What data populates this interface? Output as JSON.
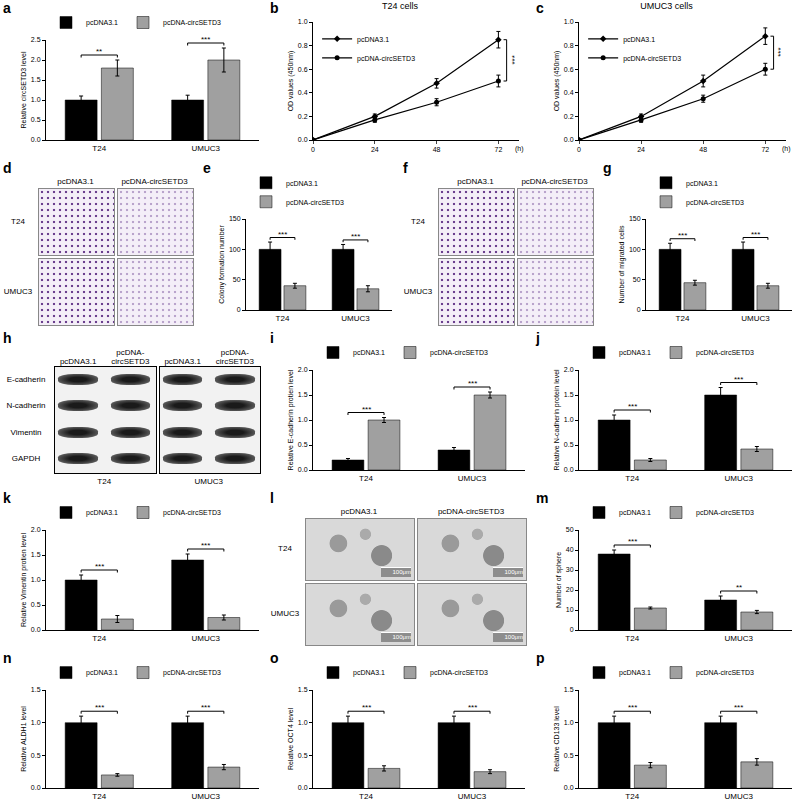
{
  "chart_data": [
    {
      "panel": "a",
      "type": "bar",
      "y_label": "Relative circSETD3 level",
      "categories": [
        "T24",
        "UMUC3"
      ],
      "series": [
        {
          "name": "pcDNA3.1",
          "color": "#000000",
          "values": [
            1.0,
            1.0
          ],
          "errors": [
            0.1,
            0.12
          ]
        },
        {
          "name": "pcDNA-circSETD3",
          "color": "#a0a0a0",
          "values": [
            1.8,
            2.0
          ],
          "errors": [
            0.2,
            0.3
          ]
        }
      ],
      "ylim": [
        0,
        2.5
      ],
      "yticks": [
        {
          "value": 0,
          "label": "0.0"
        },
        0.5,
        {
          "value": 1,
          "label": "1.0"
        },
        1.5,
        {
          "value": 2,
          "label": "2.0"
        },
        2.5
      ],
      "legend": "top",
      "grid": false,
      "annotations": [
        {
          "category": "T24",
          "text": "**"
        },
        {
          "category": "UMUC3",
          "text": "***"
        }
      ]
    },
    {
      "panel": "b",
      "type": "line",
      "title": "T24 cells",
      "y_label": "OD values (450nm)",
      "x_label": "(h)",
      "x": [
        0,
        24,
        48,
        72
      ],
      "series": [
        {
          "name": "pcDNA3.1",
          "color": "#000000",
          "marker": "diamond",
          "values": [
            0.0,
            0.2,
            0.48,
            0.85
          ],
          "errors": [
            0.0,
            0.02,
            0.04,
            0.07
          ]
        },
        {
          "name": "pcDNA-circSETD3",
          "color": "#000000",
          "marker": "circle",
          "values": [
            0.0,
            0.17,
            0.32,
            0.5
          ],
          "errors": [
            0.0,
            0.02,
            0.03,
            0.05
          ]
        }
      ],
      "xlim": [
        0,
        80
      ],
      "xticks": [
        0,
        24,
        48,
        72
      ],
      "ylim": [
        0,
        1.0
      ],
      "yticks": [
        {
          "value": 0,
          "label": "0.0"
        },
        0.2,
        0.4,
        0.6,
        0.8,
        {
          "value": 1.0,
          "label": "1.0"
        }
      ],
      "legend": "upper left",
      "grid": false,
      "annotations": [
        {
          "x": 72,
          "text": "***"
        }
      ]
    },
    {
      "panel": "c",
      "type": "line",
      "title": "UMUC3 cells",
      "y_label": "OD values (450nm)",
      "x_label": "(h)",
      "x": [
        0,
        24,
        48,
        72
      ],
      "series": [
        {
          "name": "pcDNA3.1",
          "color": "#000000",
          "marker": "diamond",
          "values": [
            0.0,
            0.2,
            0.5,
            0.88
          ],
          "errors": [
            0.0,
            0.02,
            0.05,
            0.07
          ]
        },
        {
          "name": "pcDNA-circSETD3",
          "color": "#000000",
          "marker": "circle",
          "values": [
            0.0,
            0.17,
            0.35,
            0.6
          ],
          "errors": [
            0.0,
            0.02,
            0.03,
            0.05
          ]
        }
      ],
      "xlim": [
        0,
        80
      ],
      "xticks": [
        0,
        24,
        48,
        72
      ],
      "ylim": [
        0,
        1.0
      ],
      "yticks": [
        {
          "value": 0,
          "label": "0.0"
        },
        0.2,
        0.4,
        0.6,
        0.8,
        {
          "value": 1.0,
          "label": "1.0"
        }
      ],
      "legend": "upper left",
      "grid": false,
      "annotations": [
        {
          "x": 72,
          "text": "***"
        }
      ]
    },
    {
      "panel": "d",
      "type": "image",
      "columns": [
        "pcDNA3.1",
        "pcDNA-circSETD3"
      ],
      "rows": [
        "T24",
        "UMUC3"
      ]
    },
    {
      "panel": "e",
      "type": "bar",
      "y_label": "Colony formation number",
      "categories": [
        "T24",
        "UMUC3"
      ],
      "series": [
        {
          "name": "pcDNA3.1",
          "color": "#000000",
          "values": [
            100,
            100
          ],
          "errors": [
            12,
            8
          ]
        },
        {
          "name": "pcDNA-circSETD3",
          "color": "#a0a0a0",
          "values": [
            40,
            35
          ],
          "errors": [
            4,
            5
          ]
        }
      ],
      "ylim": [
        0,
        150
      ],
      "yticks": [
        0,
        50,
        100,
        150
      ],
      "legend": "top",
      "grid": false,
      "annotations": [
        {
          "category": "T24",
          "text": "***"
        },
        {
          "category": "UMUC3",
          "text": "***"
        }
      ]
    },
    {
      "panel": "f",
      "type": "image",
      "columns": [
        "pcDNA3.1",
        "pcDNA-circSETD3"
      ],
      "rows": [
        "T24",
        "UMUC3"
      ]
    },
    {
      "panel": "g",
      "type": "bar",
      "y_label": "Number of migrated cells",
      "categories": [
        "T24",
        "UMUC3"
      ],
      "series": [
        {
          "name": "pcDNA3.1",
          "color": "#000000",
          "values": [
            100,
            100
          ],
          "errors": [
            10,
            12
          ]
        },
        {
          "name": "pcDNA-circSETD3",
          "color": "#a0a0a0",
          "values": [
            45,
            40
          ],
          "errors": [
            4,
            4
          ]
        }
      ],
      "ylim": [
        0,
        150
      ],
      "yticks": [
        0,
        50,
        100,
        150
      ],
      "legend": "top",
      "grid": false,
      "annotations": [
        {
          "category": "T24",
          "text": "***"
        },
        {
          "category": "UMUC3",
          "text": "***"
        }
      ]
    },
    {
      "panel": "h",
      "type": "image",
      "columns": [
        "pcDNA3.1",
        "pcDNA-circSETD3",
        "pcDNA3.1",
        "pcDNA-circSETD3"
      ],
      "rows": [
        "E-cadherin",
        "N-cadherin",
        "Vimentin",
        "GAPDH"
      ],
      "groups": [
        "T24",
        "UMUC3"
      ]
    },
    {
      "panel": "i",
      "type": "bar",
      "y_label": "Relative E-cadherin protien level",
      "categories": [
        "T24",
        "UMUC3"
      ],
      "series": [
        {
          "name": "pcDNA3.1",
          "color": "#000000",
          "values": [
            0.2,
            0.4
          ],
          "errors": [
            0.03,
            0.05
          ]
        },
        {
          "name": "pcDNA-circSETD3",
          "color": "#a0a0a0",
          "values": [
            1.0,
            1.5
          ],
          "errors": [
            0.05,
            0.06
          ]
        }
      ],
      "ylim": [
        0,
        2.0
      ],
      "yticks": [
        {
          "value": 0,
          "label": "0.0"
        },
        0.5,
        {
          "value": 1,
          "label": "1.0"
        },
        1.5,
        {
          "value": 2,
          "label": "2.0"
        }
      ],
      "legend": "top",
      "grid": false,
      "annotations": [
        {
          "category": "T24",
          "text": "***"
        },
        {
          "category": "UMUC3",
          "text": "***"
        }
      ]
    },
    {
      "panel": "j",
      "type": "bar",
      "y_label": "Relative N-cadherin protein level",
      "categories": [
        "T24",
        "UMUC3"
      ],
      "series": [
        {
          "name": "pcDNA3.1",
          "color": "#000000",
          "values": [
            1.0,
            1.5
          ],
          "errors": [
            0.1,
            0.15
          ]
        },
        {
          "name": "pcDNA-circSETD3",
          "color": "#a0a0a0",
          "values": [
            0.2,
            0.42
          ],
          "errors": [
            0.03,
            0.05
          ]
        }
      ],
      "ylim": [
        0,
        2.0
      ],
      "yticks": [
        {
          "value": 0,
          "label": "0.0"
        },
        0.5,
        {
          "value": 1,
          "label": "1.0"
        },
        1.5,
        {
          "value": 2,
          "label": "2.0"
        }
      ],
      "legend": "top",
      "grid": false,
      "annotations": [
        {
          "category": "T24",
          "text": "***"
        },
        {
          "category": "UMUC3",
          "text": "***"
        }
      ]
    },
    {
      "panel": "k",
      "type": "bar",
      "y_label": "Relative Vimentin protien level",
      "categories": [
        "T24",
        "UMUC3"
      ],
      "series": [
        {
          "name": "pcDNA3.1",
          "color": "#000000",
          "values": [
            1.0,
            1.4
          ],
          "errors": [
            0.1,
            0.12
          ]
        },
        {
          "name": "pcDNA-circSETD3",
          "color": "#a0a0a0",
          "values": [
            0.22,
            0.25
          ],
          "errors": [
            0.07,
            0.05
          ]
        }
      ],
      "ylim": [
        0,
        2.0
      ],
      "yticks": [
        {
          "value": 0,
          "label": "0.0"
        },
        0.5,
        {
          "value": 1,
          "label": "1.0"
        },
        1.5,
        {
          "value": 2,
          "label": "2.0"
        }
      ],
      "legend": "top",
      "grid": false,
      "annotations": [
        {
          "category": "T24",
          "text": "***"
        },
        {
          "category": "UMUC3",
          "text": "***"
        }
      ]
    },
    {
      "panel": "l",
      "type": "image",
      "columns": [
        "pcDNA3.1",
        "pcDNA-circSETD3"
      ],
      "rows": [
        "T24",
        "UMUC3"
      ],
      "scale_bar": "100μm"
    },
    {
      "panel": "m",
      "type": "bar",
      "y_label": "Number of sphere",
      "categories": [
        "T24",
        "UMUC3"
      ],
      "series": [
        {
          "name": "pcDNA3.1",
          "color": "#000000",
          "values": [
            38,
            15
          ],
          "errors": [
            2,
            2
          ]
        },
        {
          "name": "pcDNA-circSETD3",
          "color": "#a0a0a0",
          "values": [
            11,
            9
          ],
          "errors": [
            0.5,
            0.8
          ]
        }
      ],
      "ylim": [
        0,
        50
      ],
      "yticks": [
        0,
        10,
        20,
        30,
        40,
        50
      ],
      "legend": "top",
      "grid": false,
      "annotations": [
        {
          "category": "T24",
          "text": "***"
        },
        {
          "category": "UMUC3",
          "text": "**"
        }
      ]
    },
    {
      "panel": "n",
      "type": "bar",
      "y_label": "Relative ALDH1 level",
      "categories": [
        "T24",
        "UMUC3"
      ],
      "series": [
        {
          "name": "pcDNA3.1",
          "color": "#000000",
          "values": [
            1.0,
            1.0
          ],
          "errors": [
            0.1,
            0.1
          ]
        },
        {
          "name": "pcDNA-circSETD3",
          "color": "#a0a0a0",
          "values": [
            0.2,
            0.32
          ],
          "errors": [
            0.02,
            0.04
          ]
        }
      ],
      "ylim": [
        0,
        1.5
      ],
      "yticks": [
        {
          "value": 0,
          "label": "0.0"
        },
        0.5,
        {
          "value": 1,
          "label": "1.0"
        },
        1.5
      ],
      "legend": "top",
      "grid": false,
      "annotations": [
        {
          "category": "T24",
          "text": "***"
        },
        {
          "category": "UMUC3",
          "text": "***"
        }
      ]
    },
    {
      "panel": "o",
      "type": "bar",
      "y_label": "Relative OCT4 level",
      "categories": [
        "T24",
        "UMUC3"
      ],
      "series": [
        {
          "name": "pcDNA3.1",
          "color": "#000000",
          "values": [
            1.0,
            1.0
          ],
          "errors": [
            0.1,
            0.1
          ]
        },
        {
          "name": "pcDNA-circSETD3",
          "color": "#a0a0a0",
          "values": [
            0.3,
            0.25
          ],
          "errors": [
            0.04,
            0.03
          ]
        }
      ],
      "ylim": [
        0,
        1.5
      ],
      "yticks": [
        {
          "value": 0,
          "label": "0.0"
        },
        0.5,
        {
          "value": 1,
          "label": "1.0"
        },
        1.5
      ],
      "legend": "top",
      "grid": false,
      "annotations": [
        {
          "category": "T24",
          "text": "***"
        },
        {
          "category": "UMUC3",
          "text": "***"
        }
      ]
    },
    {
      "panel": "p",
      "type": "bar",
      "y_label": "Relative CD133 level",
      "categories": [
        "T24",
        "UMUC3"
      ],
      "series": [
        {
          "name": "pcDNA3.1",
          "color": "#000000",
          "values": [
            1.0,
            1.0
          ],
          "errors": [
            0.1,
            0.1
          ]
        },
        {
          "name": "pcDNA-circSETD3",
          "color": "#a0a0a0",
          "values": [
            0.35,
            0.4
          ],
          "errors": [
            0.04,
            0.05
          ]
        }
      ],
      "ylim": [
        0,
        1.5
      ],
      "yticks": [
        {
          "value": 0,
          "label": "0.0"
        },
        0.5,
        {
          "value": 1,
          "label": "1.0"
        },
        1.5
      ],
      "legend": "top",
      "grid": false,
      "annotations": [
        {
          "category": "T24",
          "text": "***"
        },
        {
          "category": "UMUC3",
          "text": "***"
        }
      ]
    }
  ]
}
